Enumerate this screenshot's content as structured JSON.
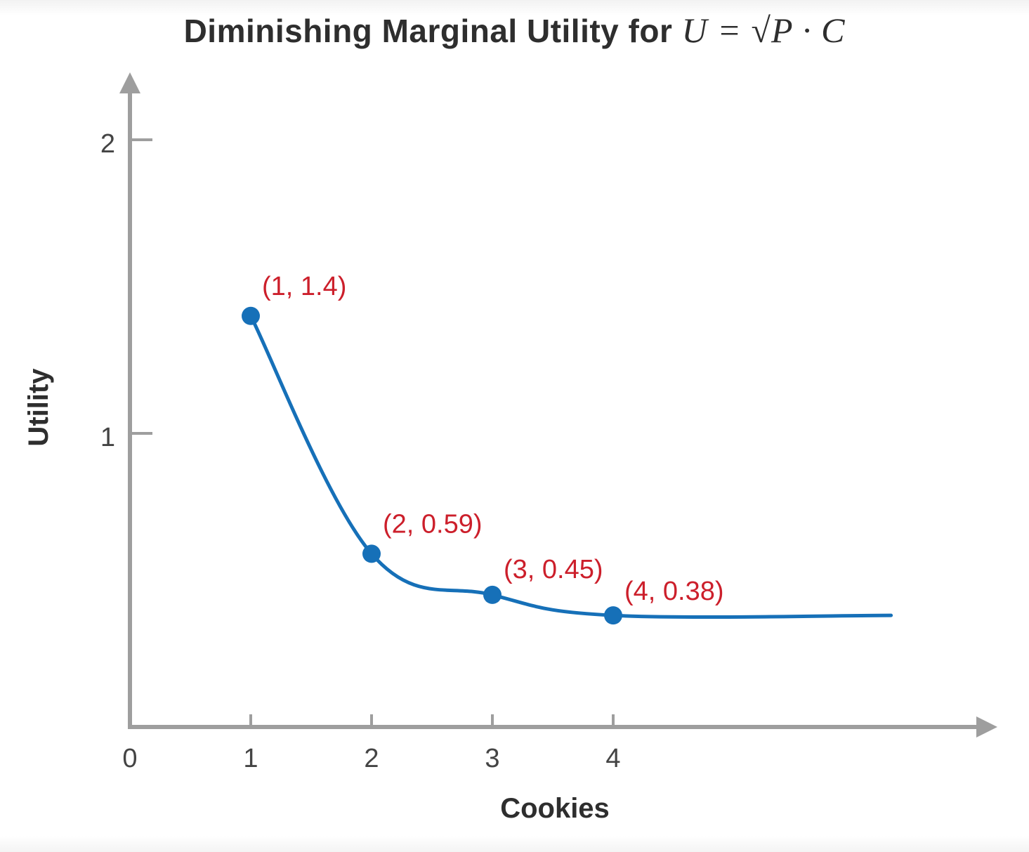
{
  "chart_data": {
    "type": "line",
    "title": "Diminishing Marginal Utility for",
    "title_formula": "U = √P · C",
    "xlabel": "Cookies",
    "ylabel": "Utility",
    "x_ticks": [
      "0",
      "1",
      "2",
      "3",
      "4"
    ],
    "y_ticks": [
      "1",
      "2"
    ],
    "xlim": [
      0,
      6.5
    ],
    "ylim": [
      0,
      2.2
    ],
    "series": [
      {
        "color": "#1670b8",
        "x": [
          1,
          2,
          3,
          4,
          6.3
        ],
        "y": [
          1.4,
          0.59,
          0.45,
          0.38,
          0.38
        ]
      }
    ],
    "points": [
      {
        "x": 1,
        "y": 1.4,
        "label": "(1, 1.4)"
      },
      {
        "x": 2,
        "y": 0.59,
        "label": "(2, 0.59)"
      },
      {
        "x": 3,
        "y": 0.45,
        "label": "(3, 0.45)"
      },
      {
        "x": 4,
        "y": 0.38,
        "label": "(4, 0.38)"
      }
    ],
    "grid": false,
    "colors": {
      "curve": "#1670b8",
      "point_label": "#cc1f2b",
      "axis": "#9e9e9e"
    }
  }
}
